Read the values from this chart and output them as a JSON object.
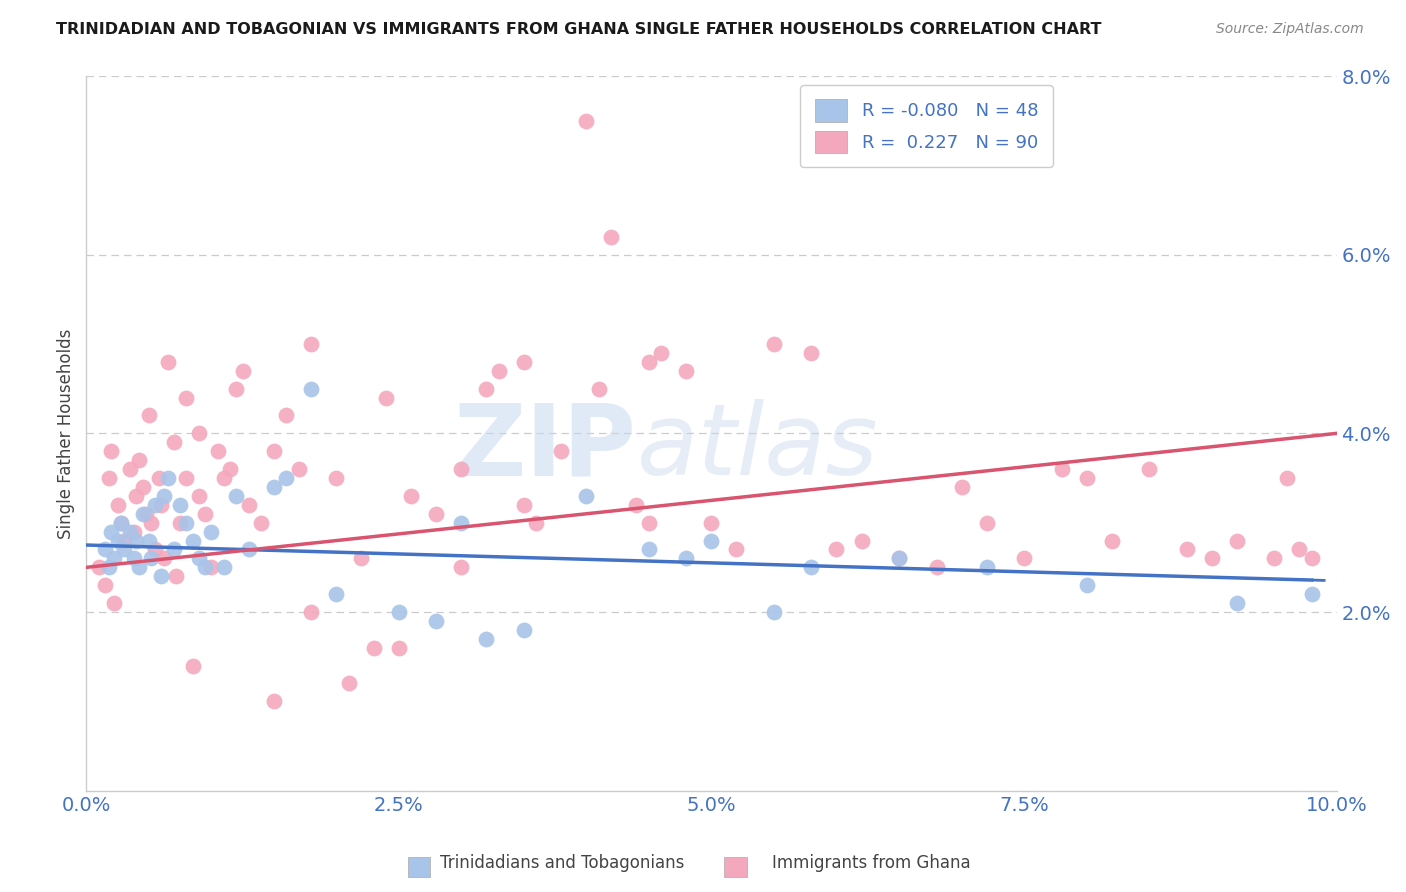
{
  "title": "TRINIDADIAN AND TOBAGONIAN VS IMMIGRANTS FROM GHANA SINGLE FATHER HOUSEHOLDS CORRELATION CHART",
  "source": "Source: ZipAtlas.com",
  "ylabel": "Single Father Households",
  "xmin": 0.0,
  "xmax": 10.0,
  "ymin": 0.0,
  "ymax": 8.0,
  "yticks": [
    2.0,
    4.0,
    6.0,
    8.0
  ],
  "xticks": [
    0.0,
    2.5,
    5.0,
    7.5,
    10.0
  ],
  "blue_color": "#a8c4e8",
  "pink_color": "#f4a8be",
  "blue_line_color": "#4472c4",
  "pink_line_color": "#d9546e",
  "blue_R": -0.08,
  "blue_N": 48,
  "pink_R": 0.227,
  "pink_N": 90,
  "legend_label_blue": "Trinidadians and Tobagonians",
  "legend_label_pink": "Immigrants from Ghana",
  "watermark_zip": "ZIP",
  "watermark_atlas": "atlas",
  "title_color": "#1a1a1a",
  "axis_color": "#4472c4",
  "blue_scatter_x": [
    0.15,
    0.18,
    0.2,
    0.22,
    0.25,
    0.28,
    0.3,
    0.35,
    0.38,
    0.4,
    0.42,
    0.45,
    0.5,
    0.52,
    0.55,
    0.6,
    0.62,
    0.65,
    0.7,
    0.75,
    0.8,
    0.85,
    0.9,
    0.95,
    1.0,
    1.1,
    1.2,
    1.3,
    1.5,
    1.6,
    1.8,
    2.0,
    2.5,
    2.8,
    3.0,
    3.2,
    3.5,
    4.0,
    4.5,
    4.8,
    5.0,
    5.5,
    5.8,
    6.5,
    7.2,
    8.0,
    9.2,
    9.8
  ],
  "blue_scatter_y": [
    2.7,
    2.5,
    2.9,
    2.6,
    2.8,
    3.0,
    2.7,
    2.9,
    2.6,
    2.8,
    2.5,
    3.1,
    2.8,
    2.6,
    3.2,
    2.4,
    3.3,
    3.5,
    2.7,
    3.2,
    3.0,
    2.8,
    2.6,
    2.5,
    2.9,
    2.5,
    3.3,
    2.7,
    3.4,
    3.5,
    4.5,
    2.2,
    2.0,
    1.9,
    3.0,
    1.7,
    1.8,
    3.3,
    2.7,
    2.6,
    2.8,
    2.0,
    2.5,
    2.6,
    2.5,
    2.3,
    2.1,
    2.2
  ],
  "pink_scatter_x": [
    0.1,
    0.15,
    0.18,
    0.2,
    0.22,
    0.25,
    0.28,
    0.3,
    0.35,
    0.38,
    0.4,
    0.42,
    0.45,
    0.48,
    0.5,
    0.52,
    0.55,
    0.58,
    0.6,
    0.62,
    0.65,
    0.7,
    0.72,
    0.75,
    0.8,
    0.85,
    0.9,
    0.95,
    1.0,
    1.05,
    1.1,
    1.15,
    1.2,
    1.25,
    1.3,
    1.4,
    1.5,
    1.6,
    1.7,
    1.8,
    2.0,
    2.2,
    2.4,
    2.5,
    2.6,
    2.8,
    3.0,
    3.2,
    3.3,
    3.5,
    3.6,
    3.8,
    4.0,
    4.2,
    4.4,
    4.5,
    4.6,
    4.8,
    5.0,
    5.2,
    5.5,
    5.8,
    6.0,
    6.2,
    6.5,
    6.8,
    7.0,
    7.2,
    7.5,
    7.8,
    8.0,
    8.2,
    8.5,
    8.8,
    9.0,
    9.2,
    9.5,
    9.6,
    9.7,
    9.8,
    3.5,
    4.1,
    1.8,
    2.3,
    1.5,
    2.1,
    0.8,
    0.9,
    4.5,
    3.0
  ],
  "pink_scatter_y": [
    2.5,
    2.3,
    3.5,
    3.8,
    2.1,
    3.2,
    3.0,
    2.8,
    3.6,
    2.9,
    3.3,
    3.7,
    3.4,
    3.1,
    4.2,
    3.0,
    2.7,
    3.5,
    3.2,
    2.6,
    4.8,
    3.9,
    2.4,
    3.0,
    4.4,
    1.4,
    3.3,
    3.1,
    2.5,
    3.8,
    3.5,
    3.6,
    4.5,
    4.7,
    3.2,
    3.0,
    3.8,
    4.2,
    3.6,
    5.0,
    3.5,
    2.6,
    4.4,
    1.6,
    3.3,
    3.1,
    3.6,
    4.5,
    4.7,
    3.2,
    3.0,
    3.8,
    7.5,
    6.2,
    3.2,
    4.8,
    4.9,
    4.7,
    3.0,
    2.7,
    5.0,
    4.9,
    2.7,
    2.8,
    2.6,
    2.5,
    3.4,
    3.0,
    2.6,
    3.6,
    3.5,
    2.8,
    3.6,
    2.7,
    2.6,
    2.8,
    2.6,
    3.5,
    2.7,
    2.6,
    4.8,
    4.5,
    2.0,
    1.6,
    1.0,
    1.2,
    3.5,
    4.0,
    3.0,
    2.5
  ],
  "blue_line_x0": 0.0,
  "blue_line_x1": 10.0,
  "blue_line_y0": 2.75,
  "blue_line_y1": 2.35,
  "pink_line_x0": 0.0,
  "pink_line_x1": 10.0,
  "pink_line_y0": 2.5,
  "pink_line_y1": 4.0,
  "blue_solid_end": 9.8
}
